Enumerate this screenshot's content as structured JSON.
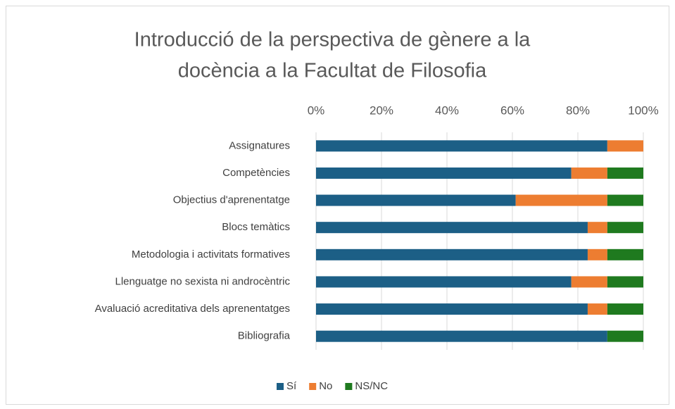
{
  "chart_data": {
    "type": "stacked_barh",
    "title": [
      "Introducció de la perspectiva de gènere a la",
      "docència a la Facultat de Filosofia"
    ],
    "categories": [
      "Assignatures",
      "Competències",
      "Objectius d'aprenentatge",
      "Blocs temàtics",
      "Metodologia i activitats formatives",
      "Llenguatge no sexista ni androcèntric",
      "Avaluació acreditativa dels aprenentatges",
      "Bibliografia"
    ],
    "series": [
      {
        "name": "Sí",
        "color": "#1c5f86",
        "values": [
          89,
          78,
          61,
          83,
          83,
          78,
          83,
          89
        ]
      },
      {
        "name": "No",
        "color": "#ed7d31",
        "values": [
          11,
          11,
          28,
          6,
          6,
          11,
          6,
          0
        ]
      },
      {
        "name": "NS/NC",
        "color": "#1f7a1f",
        "values": [
          0,
          11,
          11,
          11,
          11,
          11,
          11,
          11
        ]
      }
    ],
    "xlim": [
      0,
      100
    ],
    "xticks": [
      {
        "value": 0,
        "label": "0%"
      },
      {
        "value": 20,
        "label": "20%"
      },
      {
        "value": 40,
        "label": "40%"
      },
      {
        "value": 60,
        "label": "60%"
      },
      {
        "value": 80,
        "label": "80%"
      },
      {
        "value": 100,
        "label": "100%"
      }
    ],
    "grid": true,
    "legend": "bottom"
  }
}
